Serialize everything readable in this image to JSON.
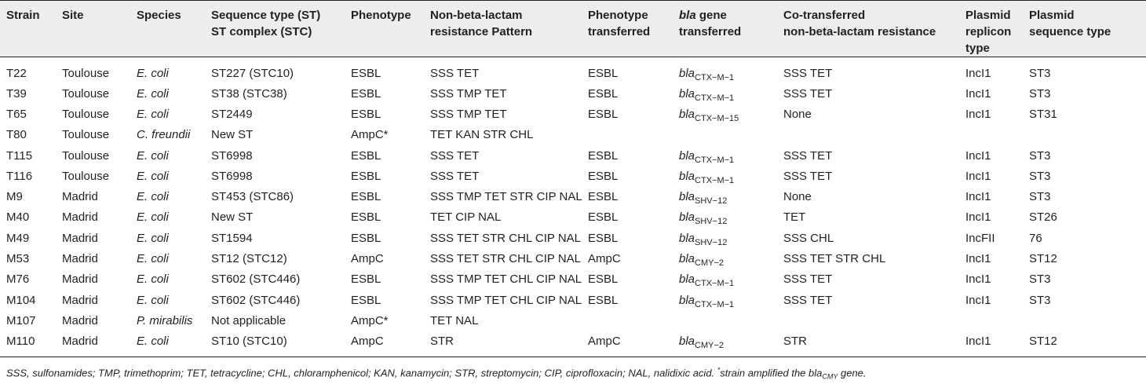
{
  "headers": [
    {
      "key": "strain",
      "lines": [
        "Strain"
      ]
    },
    {
      "key": "site",
      "lines": [
        "Site"
      ]
    },
    {
      "key": "species",
      "lines": [
        "Species"
      ]
    },
    {
      "key": "st",
      "lines": [
        "Sequence type (ST)",
        "ST complex (STC)"
      ]
    },
    {
      "key": "phenotype",
      "lines": [
        "Phenotype"
      ]
    },
    {
      "key": "nonbeta",
      "lines": [
        "Non-beta-lactam",
        "resistance Pattern"
      ]
    },
    {
      "key": "phen_trans",
      "lines": [
        "Phenotype",
        "transferred"
      ]
    },
    {
      "key": "bla_trans",
      "lines": [
        "bla gene",
        "transferred"
      ]
    },
    {
      "key": "cotrans",
      "lines": [
        "Co-transferred",
        "non-beta-lactam resistance"
      ]
    },
    {
      "key": "replicon",
      "lines": [
        "Plasmid",
        "replicon type"
      ]
    },
    {
      "key": "pst",
      "lines": [
        "Plasmid",
        "sequence type"
      ]
    }
  ],
  "rows": [
    {
      "strain": "T22",
      "site": "Toulouse",
      "species": "E. coli",
      "st": "ST227 (STC10)",
      "phenotype": "ESBL",
      "nonbeta": "SSS TET",
      "phen_trans": "ESBL",
      "bla_prefix": "bla",
      "bla_sub": "CTX−M−1",
      "cotrans": "SSS TET",
      "replicon": "IncI1",
      "pst": "ST3"
    },
    {
      "strain": "T39",
      "site": "Toulouse",
      "species": "E. coli",
      "st": "ST38 (STC38)",
      "phenotype": "ESBL",
      "nonbeta": "SSS TMP TET",
      "phen_trans": "ESBL",
      "bla_prefix": "bla",
      "bla_sub": "CTX−M−1",
      "cotrans": "SSS TET",
      "replicon": "IncI1",
      "pst": "ST3"
    },
    {
      "strain": "T65",
      "site": "Toulouse",
      "species": "E. coli",
      "st": "ST2449",
      "phenotype": "ESBL",
      "nonbeta": "SSS TMP TET",
      "phen_trans": "ESBL",
      "bla_prefix": "bla",
      "bla_sub": "CTX−M−15",
      "cotrans": "None",
      "replicon": "IncI1",
      "pst": "ST31"
    },
    {
      "strain": "T80",
      "site": "Toulouse",
      "species": "C. freundii",
      "st": "New ST",
      "phenotype": "AmpC*",
      "nonbeta": "TET KAN STR CHL",
      "phen_trans": "",
      "bla_prefix": "",
      "bla_sub": "",
      "cotrans": "",
      "replicon": "",
      "pst": ""
    },
    {
      "strain": "T115",
      "site": "Toulouse",
      "species": "E. coli",
      "st": "ST6998",
      "phenotype": "ESBL",
      "nonbeta": "SSS TET",
      "phen_trans": "ESBL",
      "bla_prefix": "bla",
      "bla_sub": "CTX−M−1",
      "cotrans": "SSS TET",
      "replicon": "IncI1",
      "pst": "ST3"
    },
    {
      "strain": "T116",
      "site": "Toulouse",
      "species": "E. coli",
      "st": "ST6998",
      "phenotype": "ESBL",
      "nonbeta": "SSS TET",
      "phen_trans": "ESBL",
      "bla_prefix": "bla",
      "bla_sub": "CTX−M−1",
      "cotrans": "SSS TET",
      "replicon": "IncI1",
      "pst": "ST3"
    },
    {
      "strain": "M9",
      "site": "Madrid",
      "species": "E. coli",
      "st": "ST453 (STC86)",
      "phenotype": "ESBL",
      "nonbeta": "SSS TMP TET STR CIP NAL",
      "phen_trans": "ESBL",
      "bla_prefix": "bla",
      "bla_sub": "SHV−12",
      "cotrans": "None",
      "replicon": "IncI1",
      "pst": "ST3"
    },
    {
      "strain": "M40",
      "site": "Madrid",
      "species": "E. coli",
      "st": "New ST",
      "phenotype": "ESBL",
      "nonbeta": "TET CIP NAL",
      "phen_trans": "ESBL",
      "bla_prefix": "bla",
      "bla_sub": "SHV−12",
      "cotrans": "TET",
      "replicon": "IncI1",
      "pst": "ST26"
    },
    {
      "strain": "M49",
      "site": "Madrid",
      "species": "E. coli",
      "st": "ST1594",
      "phenotype": "ESBL",
      "nonbeta": "SSS TET STR CHL CIP NAL",
      "phen_trans": "ESBL",
      "bla_prefix": "bla",
      "bla_sub": "SHV−12",
      "cotrans": "SSS CHL",
      "replicon": "IncFII",
      "pst": "76"
    },
    {
      "strain": "M53",
      "site": "Madrid",
      "species": "E. coli",
      "st": "ST12 (STC12)",
      "phenotype": "AmpC",
      "nonbeta": "SSS TET STR CHL CIP NAL",
      "phen_trans": "AmpC",
      "bla_prefix": "bla",
      "bla_sub": "CMY−2",
      "cotrans": "SSS TET STR CHL",
      "replicon": "IncI1",
      "pst": "ST12"
    },
    {
      "strain": "M76",
      "site": "Madrid",
      "species": "E. coli",
      "st": "ST602 (STC446)",
      "phenotype": "ESBL",
      "nonbeta": "SSS TMP TET CHL CIP NAL",
      "phen_trans": "ESBL",
      "bla_prefix": "bla",
      "bla_sub": "CTX−M−1",
      "cotrans": "SSS TET",
      "replicon": "IncI1",
      "pst": "ST3"
    },
    {
      "strain": "M104",
      "site": "Madrid",
      "species": "E. coli",
      "st": "ST602 (STC446)",
      "phenotype": "ESBL",
      "nonbeta": "SSS TMP TET CHL CIP NAL",
      "phen_trans": "ESBL",
      "bla_prefix": "bla",
      "bla_sub": "CTX−M−1",
      "cotrans": "SSS TET",
      "replicon": "IncI1",
      "pst": "ST3"
    },
    {
      "strain": "M107",
      "site": "Madrid",
      "species": "P. mirabilis",
      "st": "Not applicable",
      "phenotype": "AmpC*",
      "nonbeta": "TET NAL",
      "phen_trans": "",
      "bla_prefix": "",
      "bla_sub": "",
      "cotrans": "",
      "replicon": "",
      "pst": ""
    },
    {
      "strain": "M110",
      "site": "Madrid",
      "species": "E. coli",
      "st": "ST10 (STC10)",
      "phenotype": "AmpC",
      "nonbeta": "STR",
      "phen_trans": "AmpC",
      "bla_prefix": "bla",
      "bla_sub": "CMY−2",
      "cotrans": "STR",
      "replicon": "IncI1",
      "pst": "ST12"
    }
  ],
  "footnote": {
    "main": "SSS, sulfonamides; TMP, trimethoprim; TET, tetracycline; CHL, chloramphenicol; KAN, kanamycin; STR, streptomycin; CIP, ciprofloxacin; NAL, nalidixic acid. ",
    "mark": "*",
    "tail_prefix": "strain amplified the bla",
    "tail_sub": "CMY",
    "tail_end": " gene."
  }
}
